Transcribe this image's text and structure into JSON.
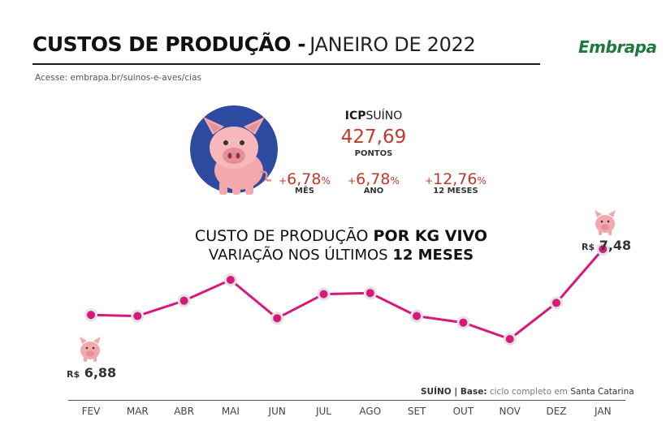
{
  "header": {
    "title_bold": "CUSTOS DE PRODUÇÃO -",
    "title_light": "JANEIRO DE 2022",
    "source": "Acesse: embrapa.br/suinos-e-aves/cias",
    "logo_text": "Embrapa"
  },
  "icp": {
    "label_bold": "ICP",
    "label_light": "SUÍNO",
    "value": "427,69",
    "unit": "PONTOS",
    "stats": [
      {
        "sign": "+",
        "value": "6,78",
        "pct": "%",
        "label": "MÊS"
      },
      {
        "sign": "+",
        "value": "6,78",
        "pct": "%",
        "label": "ANO"
      },
      {
        "sign": "+",
        "value": "12,76",
        "pct": "%",
        "label": "12 MESES"
      }
    ]
  },
  "chart_data": {
    "type": "line",
    "title_line1_light": "CUSTO DE PRODUÇÃO",
    "title_line1_bold": "POR KG VIVO",
    "title_line2_light": "VARIAÇÃO NOS ÚLTIMOS",
    "title_line2_bold": "12 MESES",
    "categories": [
      "FEV",
      "MAR",
      "ABR",
      "MAI",
      "JUN",
      "JUL",
      "AGO",
      "SET",
      "OUT",
      "NOV",
      "DEZ",
      "JAN"
    ],
    "values": [
      6.88,
      6.87,
      7.01,
      7.2,
      6.85,
      7.07,
      7.08,
      6.87,
      6.81,
      6.66,
      6.99,
      7.48
    ],
    "start_label": {
      "currency": "R$",
      "value": "6,88"
    },
    "end_label": {
      "currency": "R$",
      "value": "7,48"
    },
    "ylim": [
      6.3,
      7.6
    ],
    "grid": false,
    "line_color": "#d6197b",
    "marker_fill": "#d6197b",
    "marker_ring": "#e2e2e2"
  },
  "footnote": {
    "bold": "SUÍNO | Base:",
    "light": "ciclo completo em",
    "place": "Santa Catarina"
  },
  "colors": {
    "accent_red": "#c0392b",
    "pig_pink": "#f2a9ad",
    "badge_blue": "#2e4a9e",
    "logo_green": "#1e7a3c"
  },
  "icons": {
    "hero": "pig-icon",
    "small": "pig-icon"
  }
}
